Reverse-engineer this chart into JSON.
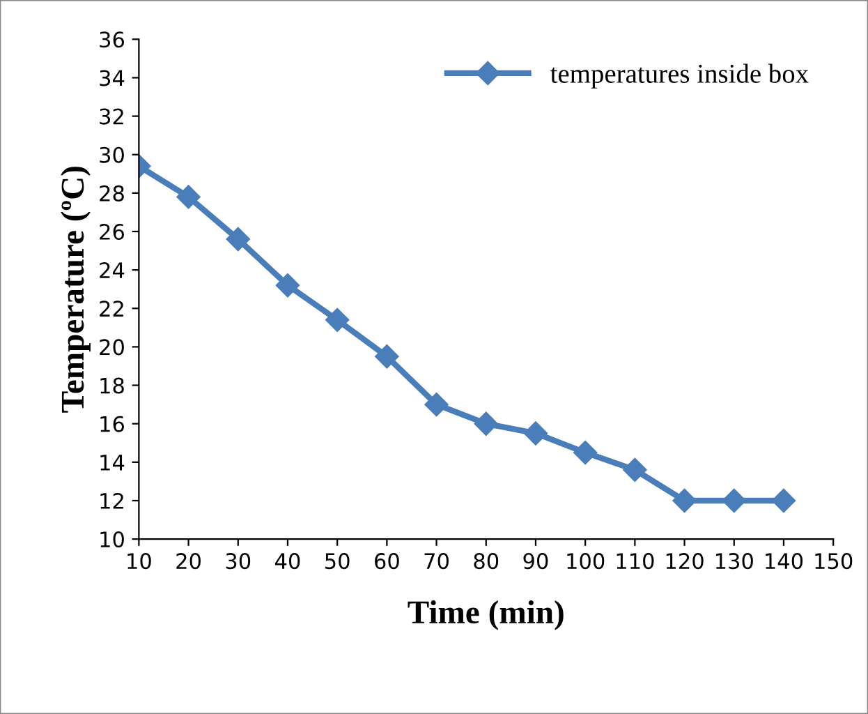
{
  "chart_data": {
    "type": "line",
    "xlabel": "Time (min)",
    "ylabel": "Temperature (ºC)",
    "x": [
      10,
      20,
      30,
      40,
      50,
      60,
      70,
      80,
      90,
      100,
      110,
      120,
      130,
      140
    ],
    "series": [
      {
        "name": "temperatures inside box",
        "color": "#4a7ebb",
        "values": [
          29.4,
          27.8,
          25.6,
          23.2,
          21.4,
          19.5,
          17.0,
          16.0,
          15.5,
          14.5,
          13.6,
          12.0,
          12.0,
          12.0
        ]
      }
    ],
    "xlim": [
      10,
      150
    ],
    "xticks": [
      10,
      20,
      30,
      40,
      50,
      60,
      70,
      80,
      90,
      100,
      110,
      120,
      130,
      140,
      150
    ],
    "ylim": [
      10,
      36
    ],
    "yticks": [
      10,
      12,
      14,
      16,
      18,
      20,
      22,
      24,
      26,
      28,
      30,
      32,
      34,
      36
    ],
    "grid": false,
    "legend": "top right",
    "marker": "diamond",
    "line_style": "solid"
  }
}
